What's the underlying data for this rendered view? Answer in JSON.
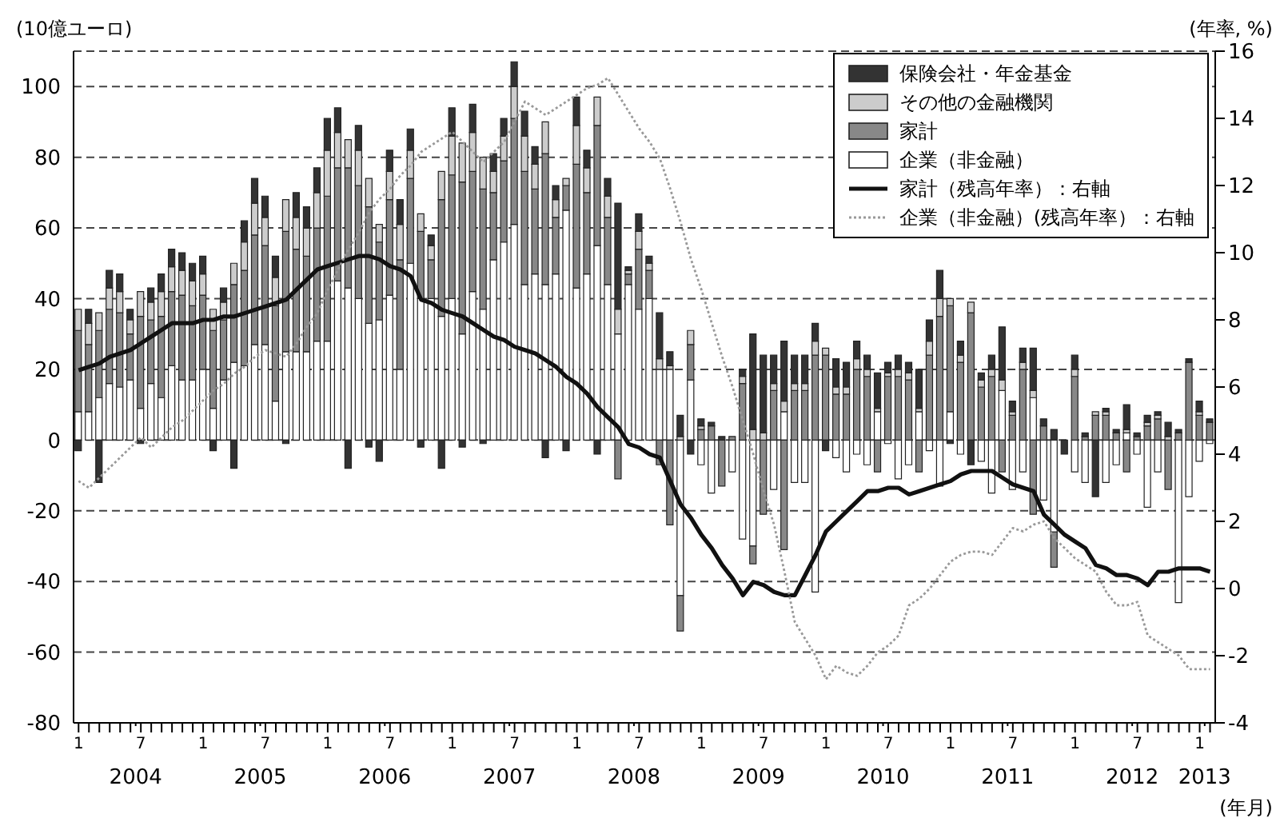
{
  "chart_data": {
    "type": "bar",
    "stacked": true,
    "ylabel": "(10億ユーロ)",
    "y2label": "(年率, %)",
    "xlabel": "(年月)",
    "x": [
      "2004-01",
      "2004-02",
      "2004-03",
      "2004-04",
      "2004-05",
      "2004-06",
      "2004-07",
      "2004-08",
      "2004-09",
      "2004-10",
      "2004-11",
      "2004-12",
      "2005-01",
      "2005-02",
      "2005-03",
      "2005-04",
      "2005-05",
      "2005-06",
      "2005-07",
      "2005-08",
      "2005-09",
      "2005-10",
      "2005-11",
      "2005-12",
      "2006-01",
      "2006-02",
      "2006-03",
      "2006-04",
      "2006-05",
      "2006-06",
      "2006-07",
      "2006-08",
      "2006-09",
      "2006-10",
      "2006-11",
      "2006-12",
      "2007-01",
      "2007-02",
      "2007-03",
      "2007-04",
      "2007-05",
      "2007-06",
      "2007-07",
      "2007-08",
      "2007-09",
      "2007-10",
      "2007-11",
      "2007-12",
      "2008-01",
      "2008-02",
      "2008-03",
      "2008-04",
      "2008-05",
      "2008-06",
      "2008-07",
      "2008-08",
      "2008-09",
      "2008-10",
      "2008-11",
      "2008-12",
      "2009-01",
      "2009-02",
      "2009-03",
      "2009-04",
      "2009-05",
      "2009-06",
      "2009-07",
      "2009-08",
      "2009-09",
      "2009-10",
      "2009-11",
      "2009-12",
      "2010-01",
      "2010-02",
      "2010-03",
      "2010-04",
      "2010-05",
      "2010-06",
      "2010-07",
      "2010-08",
      "2010-09",
      "2010-10",
      "2010-11",
      "2010-12",
      "2011-01",
      "2011-02",
      "2011-03",
      "2011-04",
      "2011-05",
      "2011-06",
      "2011-07",
      "2011-08",
      "2011-09",
      "2011-10",
      "2011-11",
      "2011-12",
      "2012-01",
      "2012-02",
      "2012-03",
      "2012-04",
      "2012-05",
      "2012-06",
      "2012-07",
      "2012-08",
      "2012-09",
      "2012-10",
      "2012-11",
      "2012-12",
      "2013-01",
      "2013-02"
    ],
    "series": [
      {
        "name": "企業（非金融）",
        "color": "#ffffff",
        "values": [
          8,
          8,
          12,
          16,
          15,
          17,
          9,
          16,
          12,
          21,
          17,
          17,
          20,
          9,
          17,
          22,
          21,
          27,
          27,
          11,
          25,
          25,
          25,
          28,
          28,
          45,
          43,
          40,
          33,
          34,
          41,
          20,
          50,
          40,
          40,
          35,
          40,
          30,
          42,
          37,
          51,
          56,
          61,
          44,
          47,
          44,
          47,
          65,
          43,
          47,
          55,
          44,
          30,
          44,
          37,
          40,
          20,
          20,
          -44,
          17,
          -7,
          -15,
          0,
          -9,
          -28,
          -30,
          0,
          -14,
          8,
          -12,
          -12,
          -43,
          0,
          -5,
          -9,
          -4,
          -7,
          8,
          -1,
          -11,
          -7,
          8,
          -3,
          -13,
          8,
          -4,
          0,
          -6,
          -15,
          14,
          -14,
          -9,
          12,
          -17,
          -26,
          0,
          -9,
          -12,
          0,
          -12,
          -7,
          2,
          -4,
          -19,
          -9,
          0,
          -46,
          -16,
          -6,
          -1
        ]
      },
      {
        "name": "家計",
        "color": "#888888",
        "values": [
          23,
          19,
          19,
          21,
          21,
          13,
          26,
          18,
          23,
          21,
          24,
          21,
          21,
          22,
          17,
          22,
          27,
          31,
          28,
          27,
          34,
          29,
          27,
          32,
          41,
          32,
          34,
          32,
          33,
          22,
          27,
          31,
          24,
          19,
          11,
          33,
          35,
          43,
          34,
          34,
          19,
          23,
          30,
          32,
          24,
          37,
          16,
          7,
          35,
          23,
          34,
          19,
          -11,
          3,
          17,
          8,
          -7,
          -24,
          -10,
          10,
          3,
          4,
          -13,
          1,
          16,
          -5,
          -21,
          14,
          -31,
          14,
          14,
          24,
          24,
          13,
          13,
          20,
          18,
          -9,
          18,
          18,
          17,
          -9,
          24,
          35,
          30,
          22,
          36,
          15,
          18,
          -9,
          7,
          20,
          -21,
          4,
          -10,
          0,
          18,
          1,
          7,
          7,
          2,
          -9,
          1,
          4,
          6,
          -14,
          2,
          22,
          7,
          5
        ]
      },
      {
        "name": "その他の金融機関",
        "color": "#cccccc",
        "values": [
          6,
          6,
          5,
          6,
          6,
          4,
          7,
          5,
          7,
          7,
          7,
          7,
          6,
          6,
          5,
          6,
          8,
          9,
          8,
          8,
          9,
          9,
          8,
          10,
          13,
          10,
          8,
          10,
          8,
          5,
          8,
          10,
          8,
          5,
          4,
          8,
          11,
          11,
          11,
          9,
          6,
          7,
          9,
          10,
          7,
          9,
          5,
          2,
          11,
          7,
          8,
          6,
          7,
          1,
          5,
          2,
          3,
          1,
          1,
          4,
          1,
          0,
          0,
          0,
          2,
          3,
          2,
          2,
          3,
          2,
          2,
          4,
          2,
          2,
          2,
          3,
          2,
          1,
          1,
          2,
          2,
          1,
          4,
          5,
          2,
          2,
          3,
          2,
          2,
          3,
          1,
          2,
          2,
          0,
          0,
          0,
          2,
          0,
          1,
          1,
          0,
          1,
          0,
          1,
          1,
          1,
          0,
          0,
          1,
          0
        ]
      },
      {
        "name": "保険会社・年金基金",
        "color": "#333333",
        "values": [
          -3,
          4,
          -12,
          5,
          5,
          3,
          -1,
          4,
          5,
          5,
          5,
          5,
          5,
          -3,
          4,
          -8,
          6,
          7,
          6,
          6,
          -1,
          7,
          6,
          7,
          9,
          7,
          -8,
          7,
          -2,
          -6,
          6,
          7,
          6,
          -2,
          3,
          -8,
          8,
          -2,
          8,
          -1,
          5,
          5,
          7,
          7,
          5,
          -5,
          4,
          -3,
          8,
          5,
          -4,
          5,
          30,
          1,
          5,
          2,
          13,
          4,
          6,
          -4,
          2,
          1,
          1,
          0,
          2,
          27,
          22,
          8,
          17,
          8,
          8,
          5,
          -3,
          8,
          7,
          5,
          4,
          10,
          3,
          4,
          3,
          11,
          6,
          8,
          -1,
          4,
          -7,
          2,
          4,
          15,
          3,
          4,
          12,
          2,
          3,
          -4,
          4,
          1,
          -16,
          1,
          1,
          7,
          1,
          2,
          1,
          4,
          1,
          1,
          3,
          1
        ]
      },
      {
        "name": "家計（残高年率）：右軸",
        "type": "line",
        "axis": "y2",
        "color": "#111111",
        "line_style": "solid",
        "values": [
          6.5,
          6.6,
          6.7,
          6.9,
          7.0,
          7.1,
          7.3,
          7.5,
          7.7,
          7.9,
          7.9,
          7.9,
          8.0,
          8.0,
          8.1,
          8.1,
          8.2,
          8.3,
          8.4,
          8.5,
          8.6,
          8.9,
          9.2,
          9.5,
          9.6,
          9.7,
          9.8,
          9.9,
          9.9,
          9.8,
          9.6,
          9.5,
          9.3,
          8.6,
          8.5,
          8.3,
          8.2,
          8.1,
          7.9,
          7.7,
          7.5,
          7.4,
          7.2,
          7.1,
          7.0,
          6.8,
          6.6,
          6.3,
          6.1,
          5.8,
          5.4,
          5.1,
          4.8,
          4.3,
          4.2,
          4.0,
          3.9,
          3.2,
          2.5,
          2.1,
          1.6,
          1.2,
          0.7,
          0.3,
          -0.2,
          0.2,
          0.1,
          -0.1,
          -0.2,
          -0.2,
          0.4,
          1.0,
          1.7,
          2.0,
          2.3,
          2.6,
          2.9,
          2.9,
          3.0,
          3.0,
          2.8,
          2.9,
          3.0,
          3.1,
          3.2,
          3.4,
          3.5,
          3.5,
          3.5,
          3.3,
          3.1,
          3.0,
          2.9,
          2.2,
          1.9,
          1.6,
          1.4,
          1.2,
          0.7,
          0.6,
          0.4,
          0.4,
          0.3,
          0.1,
          0.5,
          0.5,
          0.6,
          0.6,
          0.6,
          0.5
        ]
      },
      {
        "name": "企業（非金融）(残高年率）：右軸",
        "type": "line",
        "axis": "y2",
        "color": "#999999",
        "line_style": "dotted",
        "values": [
          3.2,
          3.0,
          3.3,
          3.6,
          3.9,
          4.2,
          4.5,
          4.2,
          4.5,
          4.8,
          5.0,
          5.3,
          5.6,
          5.9,
          6.1,
          6.4,
          6.6,
          6.9,
          7.1,
          7.0,
          6.9,
          7.3,
          7.8,
          8.2,
          8.9,
          9.5,
          10.1,
          10.6,
          11.2,
          11.6,
          11.9,
          12.3,
          12.6,
          13.0,
          13.2,
          13.4,
          13.6,
          13.3,
          13.0,
          12.7,
          13.0,
          13.3,
          13.9,
          14.5,
          14.3,
          14.1,
          14.3,
          14.5,
          14.7,
          14.9,
          15.0,
          15.2,
          14.7,
          14.2,
          13.7,
          13.3,
          12.8,
          11.9,
          10.9,
          9.8,
          8.9,
          7.9,
          6.9,
          6.0,
          5.0,
          4.0,
          2.9,
          1.9,
          0.5,
          -1.0,
          -1.5,
          -2.0,
          -2.7,
          -2.3,
          -2.5,
          -2.6,
          -2.3,
          -1.9,
          -1.7,
          -1.4,
          -0.5,
          -0.3,
          0.0,
          0.4,
          0.8,
          1.0,
          1.1,
          1.1,
          1.0,
          1.4,
          1.8,
          1.7,
          1.9,
          2.0,
          1.5,
          1.2,
          0.9,
          0.7,
          0.5,
          -0.1,
          -0.5,
          -0.5,
          -0.4,
          -1.4,
          -1.6,
          -1.8,
          -2.0,
          -2.4,
          -2.4,
          -2.4
        ]
      }
    ],
    "xlim": [
      "2003-12-17",
      "2013-02-15"
    ],
    "xticks": [
      {
        "value": "2004-01",
        "label": null
      },
      {
        "value": "2004-02",
        "label": null
      },
      {
        "value": "2004-03",
        "label": null
      },
      {
        "value": "2004-04",
        "label": null
      },
      {
        "value": "2004-05",
        "label": null
      },
      {
        "value": "2004-06",
        "label": null
      },
      {
        "value": "2004-06-16",
        "label": "2004"
      },
      {
        "value": "2004-07",
        "label": null
      },
      {
        "value": "2004-08",
        "label": null
      },
      {
        "value": "2004-09",
        "label": null
      },
      {
        "value": "2004-10",
        "label": null
      },
      {
        "value": "2004-11",
        "label": null
      },
      {
        "value": "2004-12",
        "label": null
      },
      {
        "value": "2005-01",
        "label": null
      },
      {
        "value": "2005-02",
        "label": null
      },
      {
        "value": "2005-03",
        "label": null
      },
      {
        "value": "2005-04",
        "label": null
      },
      {
        "value": "2005-05",
        "label": null
      },
      {
        "value": "2005-06",
        "label": null
      },
      {
        "value": "2005-06-16",
        "label": "2005"
      },
      {
        "value": "2005-07",
        "label": null
      },
      {
        "value": "2005-08",
        "label": null
      },
      {
        "value": "2005-09",
        "label": null
      },
      {
        "value": "2005-10",
        "label": null
      },
      {
        "value": "2005-11",
        "label": null
      },
      {
        "value": "2005-12",
        "label": null
      },
      {
        "value": "2006-01",
        "label": null
      },
      {
        "value": "2006-02",
        "label": null
      },
      {
        "value": "2006-03",
        "label": null
      },
      {
        "value": "2006-04",
        "label": null
      },
      {
        "value": "2006-05",
        "label": null
      },
      {
        "value": "2006-06",
        "label": null
      },
      {
        "value": "2006-06-16",
        "label": "2006"
      },
      {
        "value": "2006-07",
        "label": null
      },
      {
        "value": "2006-08",
        "label": null
      },
      {
        "value": "2006-09",
        "label": null
      },
      {
        "value": "2006-10",
        "label": null
      },
      {
        "value": "2006-11",
        "label": null
      },
      {
        "value": "2006-12",
        "label": null
      },
      {
        "value": "2007-01",
        "label": null
      },
      {
        "value": "2007-02",
        "label": null
      },
      {
        "value": "2007-03",
        "label": null
      },
      {
        "value": "2007-04",
        "label": null
      },
      {
        "value": "2007-05",
        "label": null
      },
      {
        "value": "2007-06",
        "label": null
      },
      {
        "value": "2007-06-16",
        "label": "2007"
      },
      {
        "value": "2007-07",
        "label": null
      },
      {
        "value": "2007-08",
        "label": null
      },
      {
        "value": "2007-09",
        "label": null
      },
      {
        "value": "2007-10",
        "label": null
      },
      {
        "value": "2007-11",
        "label": null
      },
      {
        "value": "2007-12",
        "label": null
      },
      {
        "value": "2008-01",
        "label": null
      },
      {
        "value": "2008-02",
        "label": null
      },
      {
        "value": "2008-03",
        "label": null
      },
      {
        "value": "2008-04",
        "label": null
      },
      {
        "value": "2008-05",
        "label": null
      },
      {
        "value": "2008-06",
        "label": null
      },
      {
        "value": "2008-06-16",
        "label": "2008"
      },
      {
        "value": "2008-07",
        "label": null
      },
      {
        "value": "2008-08",
        "label": null
      },
      {
        "value": "2008-09",
        "label": null
      },
      {
        "value": "2008-10",
        "label": null
      },
      {
        "value": "2008-11",
        "label": null
      },
      {
        "value": "2008-12",
        "label": null
      },
      {
        "value": "2009-01",
        "label": null
      },
      {
        "value": "2009-02",
        "label": null
      },
      {
        "value": "2009-03",
        "label": null
      },
      {
        "value": "2009-04",
        "label": null
      },
      {
        "value": "2009-05",
        "label": null
      },
      {
        "value": "2009-06",
        "label": null
      },
      {
        "value": "2009-06-16",
        "label": "2009"
      },
      {
        "value": "2009-07",
        "label": null
      },
      {
        "value": "2009-08",
        "label": null
      },
      {
        "value": "2009-09",
        "label": null
      },
      {
        "value": "2009-10",
        "label": null
      },
      {
        "value": "2009-11",
        "label": null
      },
      {
        "value": "2009-12",
        "label": null
      },
      {
        "value": "2010-01",
        "label": null
      },
      {
        "value": "2010-02",
        "label": null
      },
      {
        "value": "2010-03",
        "label": null
      },
      {
        "value": "2010-04",
        "label": null
      },
      {
        "value": "2010-05",
        "label": null
      },
      {
        "value": "2010-06",
        "label": null
      },
      {
        "value": "2010-06-16",
        "label": "2010"
      },
      {
        "value": "2010-07",
        "label": null
      },
      {
        "value": "2010-08",
        "label": null
      },
      {
        "value": "2010-09",
        "label": null
      },
      {
        "value": "2010-10",
        "label": null
      },
      {
        "value": "2010-11",
        "label": null
      },
      {
        "value": "2010-12",
        "label": null
      },
      {
        "value": "2011-01",
        "label": null
      },
      {
        "value": "2011-02",
        "label": null
      },
      {
        "value": "2011-03",
        "label": null
      },
      {
        "value": "2011-04",
        "label": null
      },
      {
        "value": "2011-05",
        "label": null
      },
      {
        "value": "2011-06",
        "label": null
      },
      {
        "value": "2011-06-16",
        "label": "2011"
      },
      {
        "value": "2011-07",
        "label": null
      },
      {
        "value": "2011-08",
        "label": null
      },
      {
        "value": "2011-09",
        "label": null
      },
      {
        "value": "2011-10",
        "label": null
      },
      {
        "value": "2011-11",
        "label": null
      },
      {
        "value": "2011-12",
        "label": null
      },
      {
        "value": "2012-01",
        "label": null
      },
      {
        "value": "2012-02",
        "label": null
      },
      {
        "value": "2012-03",
        "label": null
      },
      {
        "value": "2012-04",
        "label": null
      },
      {
        "value": "2012-05",
        "label": null
      },
      {
        "value": "2012-06",
        "label": null
      },
      {
        "value": "2012-06-16",
        "label": "2012"
      },
      {
        "value": "2012-07",
        "label": null
      },
      {
        "value": "2012-08",
        "label": null
      },
      {
        "value": "2012-09",
        "label": null
      },
      {
        "value": "2012-10",
        "label": null
      },
      {
        "value": "2012-11",
        "label": null
      },
      {
        "value": "2012-12",
        "label": null
      },
      {
        "value": "2013-01",
        "label": null
      },
      {
        "value": "2013-01-16",
        "label": "2013"
      },
      {
        "value": "2013-02",
        "label": null
      }
    ],
    "ylim": [
      -80,
      110
    ],
    "yticks": [
      -80,
      -60,
      -40,
      -20,
      0,
      20,
      40,
      60,
      80,
      100
    ],
    "y2lim": [
      -4,
      16
    ],
    "y2ticks": [
      -4,
      -2,
      0,
      2,
      4,
      6,
      8,
      10,
      12,
      14,
      16
    ],
    "grid": "y",
    "legend": "top right",
    "annotations": [
      "1",
      "7",
      "1",
      "7",
      "1",
      "7",
      "1",
      "7",
      "1",
      "7",
      "1",
      "7",
      "1",
      "7",
      "1",
      "7",
      "1",
      "7",
      "1"
    ]
  }
}
